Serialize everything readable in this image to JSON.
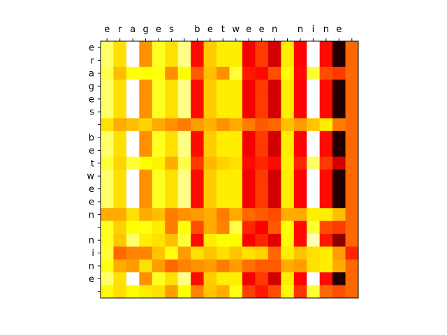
{
  "chart_data": {
    "type": "heatmap",
    "colormap": "hot",
    "title": "",
    "xlabel": "",
    "ylabel": "",
    "x_tick_position": "top",
    "grid": false,
    "x_labels": [
      "e",
      "r",
      "a",
      "g",
      "e",
      "s",
      " ",
      "b",
      "e",
      "t",
      "w",
      "e",
      "e",
      "n",
      " ",
      "n",
      "i",
      "n",
      "e",
      " "
    ],
    "y_labels": [
      "e",
      "r",
      "a",
      "g",
      "e",
      "s",
      " ",
      "b",
      "e",
      "t",
      "w",
      "e",
      "e",
      "n",
      " ",
      "n",
      "i",
      "n",
      "e",
      " "
    ],
    "values": [
      [
        0.85,
        0.7,
        1.0,
        0.58,
        0.78,
        0.7,
        0.88,
        0.38,
        0.67,
        0.72,
        0.72,
        0.35,
        0.45,
        0.3,
        0.72,
        0.37,
        1.0,
        0.38,
        0.05,
        0.52
      ],
      [
        0.85,
        0.7,
        1.0,
        0.58,
        0.78,
        0.7,
        0.88,
        0.38,
        0.67,
        0.72,
        0.72,
        0.35,
        0.45,
        0.3,
        0.72,
        0.37,
        1.0,
        0.38,
        0.05,
        0.52
      ],
      [
        0.82,
        0.65,
        0.75,
        0.75,
        0.76,
        0.58,
        0.75,
        0.5,
        0.65,
        0.58,
        0.8,
        0.4,
        0.38,
        0.48,
        0.74,
        0.38,
        0.8,
        0.48,
        0.45,
        0.52
      ],
      [
        0.85,
        0.7,
        1.0,
        0.58,
        0.78,
        0.7,
        0.88,
        0.38,
        0.67,
        0.72,
        0.72,
        0.35,
        0.45,
        0.3,
        0.72,
        0.37,
        1.0,
        0.38,
        0.05,
        0.52
      ],
      [
        0.85,
        0.7,
        1.0,
        0.58,
        0.78,
        0.7,
        0.88,
        0.38,
        0.67,
        0.72,
        0.72,
        0.35,
        0.45,
        0.3,
        0.72,
        0.37,
        1.0,
        0.38,
        0.05,
        0.52
      ],
      [
        0.85,
        0.7,
        1.0,
        0.58,
        0.78,
        0.7,
        0.88,
        0.38,
        0.67,
        0.72,
        0.72,
        0.35,
        0.45,
        0.3,
        0.72,
        0.37,
        1.0,
        0.38,
        0.05,
        0.52
      ],
      [
        0.7,
        0.62,
        0.65,
        0.68,
        0.62,
        0.58,
        0.55,
        0.6,
        0.63,
        0.58,
        0.62,
        0.55,
        0.5,
        0.52,
        0.65,
        0.6,
        0.66,
        0.72,
        0.55,
        0.52
      ],
      [
        0.85,
        0.7,
        1.0,
        0.58,
        0.78,
        0.7,
        0.88,
        0.38,
        0.67,
        0.72,
        0.72,
        0.35,
        0.45,
        0.3,
        0.72,
        0.37,
        1.0,
        0.38,
        0.05,
        0.52
      ],
      [
        0.85,
        0.7,
        1.0,
        0.58,
        0.78,
        0.7,
        0.88,
        0.38,
        0.67,
        0.72,
        0.72,
        0.35,
        0.45,
        0.3,
        0.72,
        0.37,
        1.0,
        0.38,
        0.05,
        0.52
      ],
      [
        0.8,
        0.68,
        0.8,
        0.75,
        0.73,
        0.62,
        0.82,
        0.45,
        0.64,
        0.68,
        0.7,
        0.38,
        0.42,
        0.38,
        0.73,
        0.42,
        0.85,
        0.45,
        0.3,
        0.52
      ],
      [
        0.85,
        0.7,
        1.0,
        0.58,
        0.78,
        0.7,
        0.88,
        0.38,
        0.67,
        0.72,
        0.72,
        0.35,
        0.45,
        0.3,
        0.72,
        0.37,
        1.0,
        0.38,
        0.05,
        0.52
      ],
      [
        0.85,
        0.7,
        1.0,
        0.58,
        0.78,
        0.7,
        0.88,
        0.38,
        0.67,
        0.72,
        0.72,
        0.35,
        0.45,
        0.3,
        0.72,
        0.37,
        1.0,
        0.38,
        0.05,
        0.52
      ],
      [
        0.85,
        0.7,
        1.0,
        0.58,
        0.78,
        0.7,
        0.88,
        0.38,
        0.67,
        0.72,
        0.72,
        0.35,
        0.45,
        0.3,
        0.72,
        0.37,
        1.0,
        0.38,
        0.05,
        0.52
      ],
      [
        0.62,
        0.62,
        0.7,
        0.62,
        0.65,
        0.55,
        0.58,
        0.6,
        0.62,
        0.55,
        0.62,
        0.52,
        0.5,
        0.48,
        0.62,
        0.62,
        0.72,
        0.72,
        0.65,
        0.52
      ],
      [
        0.78,
        0.68,
        0.75,
        0.76,
        0.72,
        0.55,
        0.76,
        0.48,
        0.62,
        0.56,
        0.82,
        0.42,
        0.36,
        0.5,
        0.75,
        0.38,
        0.8,
        0.48,
        0.45,
        0.52
      ],
      [
        0.78,
        0.66,
        0.85,
        0.72,
        0.7,
        0.65,
        0.8,
        0.38,
        0.72,
        0.75,
        0.74,
        0.36,
        0.42,
        0.32,
        0.74,
        0.38,
        0.92,
        0.4,
        0.2,
        0.52
      ],
      [
        0.8,
        0.52,
        0.56,
        0.56,
        0.66,
        0.76,
        0.6,
        0.7,
        0.66,
        0.7,
        0.66,
        0.7,
        0.68,
        0.52,
        0.72,
        0.66,
        0.7,
        0.72,
        0.6,
        0.42
      ],
      [
        0.76,
        0.62,
        0.6,
        0.7,
        0.6,
        0.52,
        0.56,
        0.58,
        0.6,
        0.55,
        0.6,
        0.53,
        0.5,
        0.5,
        0.62,
        0.6,
        0.7,
        0.72,
        0.62,
        0.52
      ],
      [
        0.85,
        0.7,
        1.0,
        0.58,
        0.78,
        0.7,
        0.88,
        0.38,
        0.67,
        0.72,
        0.72,
        0.35,
        0.45,
        0.3,
        0.72,
        0.37,
        1.0,
        0.38,
        0.05,
        0.52
      ],
      [
        0.74,
        0.7,
        0.74,
        0.72,
        0.7,
        0.6,
        0.75,
        0.56,
        0.66,
        0.62,
        0.76,
        0.46,
        0.4,
        0.48,
        0.74,
        0.44,
        0.8,
        0.52,
        0.48,
        0.52
      ]
    ]
  }
}
